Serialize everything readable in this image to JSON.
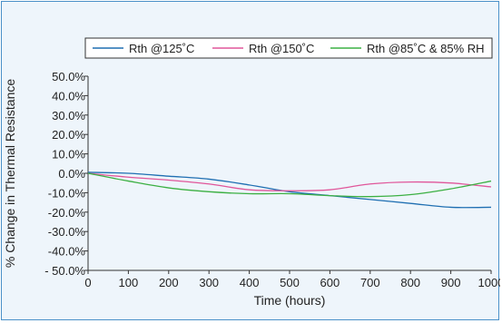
{
  "chart_data": {
    "type": "line",
    "title": "",
    "xlabel": "Time (hours)",
    "ylabel": "% Change in Thermal Resistance",
    "xlim": [
      0,
      1000
    ],
    "ylim": [
      -50,
      50
    ],
    "xticks": [
      0,
      100,
      200,
      300,
      400,
      500,
      600,
      700,
      800,
      900,
      1000
    ],
    "xtick_labels": [
      "0",
      "100",
      "200",
      "300",
      "400",
      "500",
      "600",
      "700",
      "800",
      "900",
      "1000"
    ],
    "yticks": [
      50,
      40,
      30,
      20,
      10,
      0,
      -10,
      -20,
      -30,
      -40,
      -50
    ],
    "ytick_labels": [
      "50.0%",
      "40.0%",
      "30.0%",
      "20.0%",
      "10.0%",
      "0.0%",
      "-10.0%",
      "-20.0%",
      "-30.0%",
      "-40.0%",
      "- 50.0%"
    ],
    "grid": false,
    "legend_position": "top",
    "series": [
      {
        "name": "Rth @125˚C",
        "color": "#1f6fb2",
        "x": [
          0,
          100,
          200,
          300,
          400,
          500,
          600,
          700,
          800,
          900,
          1000
        ],
        "y": [
          0.5,
          0,
          -1.5,
          -3,
          -6,
          -9.5,
          -11.5,
          -13.5,
          -15.5,
          -17.5,
          -17.5
        ]
      },
      {
        "name": "Rth @150˚C",
        "color": "#e0569a",
        "x": [
          0,
          100,
          200,
          300,
          400,
          500,
          600,
          700,
          800,
          900,
          1000
        ],
        "y": [
          0,
          -2,
          -3.5,
          -5.5,
          -8.5,
          -9,
          -8.5,
          -5.5,
          -4.5,
          -5,
          -7
        ]
      },
      {
        "name": "Rth @85˚C & 85% RH",
        "color": "#3cb043",
        "x": [
          0,
          100,
          200,
          300,
          400,
          500,
          600,
          700,
          800,
          900,
          1000
        ],
        "y": [
          0,
          -4,
          -7.5,
          -9.5,
          -10.5,
          -10.5,
          -11.5,
          -12,
          -11,
          -8,
          -4
        ]
      }
    ]
  }
}
